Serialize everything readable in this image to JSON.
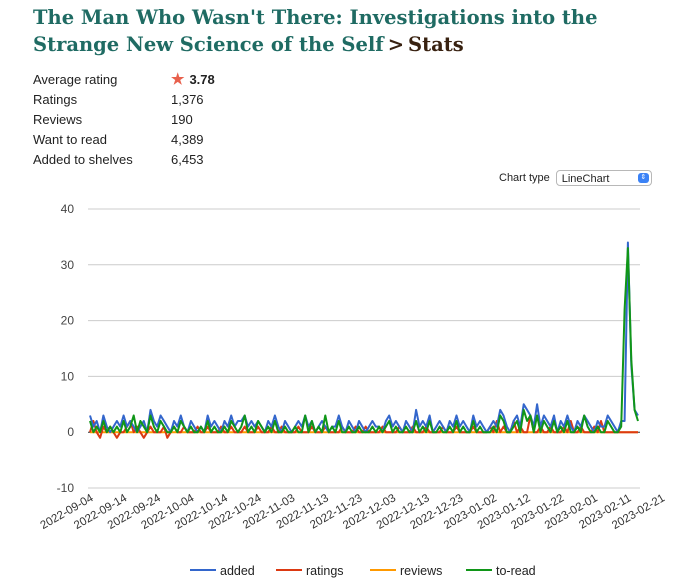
{
  "header": {
    "title_link": "The Man Who Wasn't There: Investigations into the Strange New Science of the Self",
    "separator": ">",
    "current": "Stats"
  },
  "stats": [
    {
      "label": "Average rating",
      "value": "3.78"
    },
    {
      "label": "Ratings",
      "value": "1,376"
    },
    {
      "label": "Reviews",
      "value": "190"
    },
    {
      "label": "Want to read",
      "value": "4,389"
    },
    {
      "label": "Added to shelves",
      "value": "6,453"
    }
  ],
  "chart_type_control": {
    "label": "Chart type",
    "selected": "LineChart"
  },
  "colors": {
    "added": "#3366cc",
    "ratings": "#dc3912",
    "reviews": "#ff9900",
    "to-read": "#109618",
    "accent": "#e8604c"
  },
  "chart_data": {
    "type": "line",
    "ylim": [
      -10,
      40
    ],
    "yticks": [
      40,
      30,
      20,
      10,
      0,
      -10
    ],
    "xtick_labels": [
      "2022-09-04",
      "2022-09-14",
      "2022-09-24",
      "2022-10-04",
      "2022-10-14",
      "2022-10-24",
      "2022-11-03",
      "2022-11-13",
      "2022-11-23",
      "2022-12-03",
      "2022-12-13",
      "2022-12-23",
      "2023-01-02",
      "2023-01-12",
      "2023-01-22",
      "2023-02-01",
      "2023-02-11",
      "2023-02-21"
    ],
    "start_date": "2022-09-04",
    "legend_position": "bottom",
    "series": [
      {
        "name": "added",
        "color": "#3366cc",
        "values": [
          3,
          1,
          2,
          0,
          3,
          1,
          0,
          1,
          2,
          1,
          3,
          1,
          2,
          1,
          0,
          1,
          2,
          0,
          4,
          2,
          1,
          3,
          2,
          1,
          0,
          2,
          1,
          3,
          1,
          0,
          2,
          1,
          0,
          1,
          0,
          3,
          1,
          2,
          1,
          0,
          2,
          1,
          3,
          1,
          2,
          2,
          3,
          1,
          2,
          1,
          2,
          1,
          0,
          2,
          1,
          3,
          1,
          0,
          2,
          1,
          0,
          1,
          2,
          1,
          3,
          1,
          2,
          0,
          1,
          2,
          1,
          0,
          1,
          1,
          3,
          1,
          0,
          2,
          1,
          0,
          2,
          1,
          0,
          1,
          2,
          1,
          1,
          0,
          2,
          3,
          1,
          2,
          1,
          0,
          2,
          1,
          0,
          4,
          1,
          2,
          1,
          3,
          0,
          1,
          2,
          1,
          0,
          2,
          1,
          3,
          1,
          2,
          1,
          0,
          3,
          1,
          2,
          1,
          0,
          1,
          2,
          1,
          4,
          3,
          1,
          0,
          2,
          3,
          1,
          5,
          4,
          3,
          1,
          5,
          1,
          3,
          2,
          1,
          3,
          0,
          2,
          1,
          3,
          1,
          0,
          2,
          1,
          3,
          2,
          1,
          0,
          2,
          1,
          1,
          3,
          2,
          1,
          0,
          2,
          2,
          34,
          12,
          4,
          3
        ]
      },
      {
        "name": "ratings",
        "color": "#dc3912",
        "values": [
          0,
          2,
          0,
          -1,
          1,
          0,
          1,
          0,
          -1,
          0,
          0,
          1,
          2,
          0,
          1,
          0,
          -1,
          0,
          1,
          0,
          0,
          0,
          1,
          -1,
          0,
          1,
          0,
          0,
          1,
          0,
          0,
          0,
          1,
          0,
          0,
          1,
          0,
          0,
          0,
          1,
          0,
          0,
          1,
          0,
          0,
          0,
          1,
          0,
          0,
          0,
          1,
          0,
          0,
          0,
          1,
          0,
          0,
          1,
          0,
          0,
          0,
          0,
          1,
          0,
          0,
          0,
          1,
          0,
          0,
          0,
          1,
          0,
          0,
          0,
          0,
          1,
          0,
          0,
          0,
          1,
          0,
          0,
          1,
          0,
          0,
          0,
          0,
          1,
          0,
          0,
          0,
          0,
          1,
          0,
          0,
          0,
          1,
          0,
          0,
          0,
          1,
          0,
          0,
          0,
          0,
          1,
          0,
          0,
          0,
          1,
          0,
          0,
          0,
          0,
          1,
          0,
          0,
          0,
          0,
          1,
          0,
          2,
          0,
          1,
          0,
          0,
          2,
          0,
          1,
          0,
          0,
          3,
          0,
          0,
          1,
          0,
          0,
          1,
          0,
          0,
          0,
          1,
          0,
          2,
          0,
          0,
          1,
          0,
          0,
          0,
          1,
          0,
          2,
          0,
          0,
          0,
          0,
          0,
          0,
          0,
          0,
          0,
          0,
          0
        ]
      },
      {
        "name": "reviews",
        "color": "#ff9900",
        "values": [
          0,
          0,
          0,
          0,
          0,
          0,
          0,
          0,
          0,
          0,
          0,
          0,
          0,
          0,
          0,
          0,
          0,
          0,
          0,
          0,
          0,
          0,
          0,
          0,
          0,
          0,
          0,
          0,
          0,
          0,
          0,
          0,
          0,
          0,
          0,
          0,
          0,
          0,
          0,
          0,
          0,
          0,
          0,
          0,
          0,
          0,
          0,
          0,
          0,
          0,
          0,
          0,
          0,
          0,
          0,
          0,
          0,
          0,
          0,
          0,
          0,
          0,
          0,
          0,
          0,
          0,
          0,
          0,
          0,
          0,
          0,
          0,
          0,
          0,
          0,
          0,
          0,
          0,
          0,
          0,
          0,
          0,
          0,
          0,
          0,
          0,
          0,
          0,
          0,
          0,
          0,
          0,
          0,
          0,
          0,
          0,
          0,
          0,
          0,
          0,
          0,
          0,
          0,
          0,
          0,
          0,
          0,
          0,
          0,
          0,
          0,
          0,
          0,
          0,
          0,
          0,
          0,
          0,
          0,
          0,
          0,
          0,
          0,
          0,
          0,
          0,
          0,
          0,
          0,
          0,
          0,
          0,
          0,
          0,
          0,
          0,
          0,
          0,
          0,
          0,
          0,
          0,
          0,
          0,
          0,
          0,
          0,
          0,
          0,
          0,
          0,
          0,
          0,
          0,
          0,
          0,
          0,
          0,
          0,
          0,
          0,
          0,
          0,
          0
        ]
      },
      {
        "name": "to-read",
        "color": "#109618",
        "values": [
          2,
          0,
          1,
          0,
          2,
          0,
          1,
          0,
          1,
          0,
          2,
          0,
          1,
          3,
          0,
          2,
          1,
          0,
          3,
          1,
          0,
          2,
          1,
          0,
          0,
          1,
          0,
          2,
          1,
          0,
          1,
          0,
          0,
          1,
          0,
          2,
          0,
          1,
          0,
          0,
          1,
          0,
          2,
          1,
          0,
          1,
          3,
          0,
          1,
          0,
          2,
          1,
          0,
          1,
          0,
          2,
          0,
          0,
          1,
          0,
          0,
          1,
          0,
          0,
          3,
          0,
          2,
          0,
          1,
          0,
          3,
          0,
          1,
          0,
          2,
          0,
          0,
          1,
          0,
          0,
          1,
          0,
          0,
          0,
          1,
          0,
          1,
          0,
          1,
          2,
          0,
          1,
          0,
          0,
          1,
          0,
          0,
          2,
          0,
          1,
          0,
          2,
          0,
          0,
          1,
          0,
          0,
          1,
          0,
          2,
          0,
          1,
          0,
          0,
          2,
          0,
          1,
          0,
          0,
          0,
          1,
          0,
          3,
          2,
          0,
          0,
          1,
          2,
          0,
          4,
          2,
          3,
          0,
          3,
          0,
          2,
          1,
          0,
          2,
          0,
          1,
          0,
          2,
          0,
          0,
          1,
          0,
          3,
          1,
          0,
          0,
          1,
          0,
          0,
          2,
          1,
          0,
          0,
          1,
          22,
          33,
          13,
          4,
          2
        ]
      }
    ]
  }
}
